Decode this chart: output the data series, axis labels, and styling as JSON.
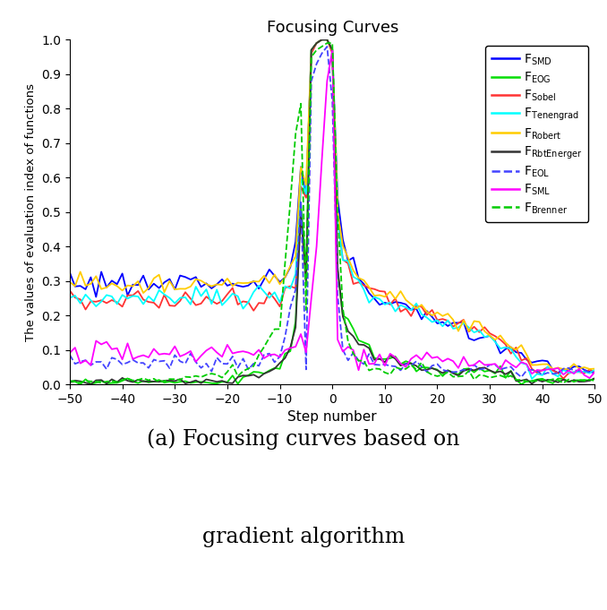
{
  "title": "Focusing Curves",
  "xlabel": "Step number",
  "ylabel": "The values of evaluation index of functions",
  "caption_line1": "(a) Focusing curves based on",
  "caption_line2": "gradient algorithm",
  "xlim": [
    -50,
    50
  ],
  "ylim": [
    0,
    1.0
  ],
  "xticks": [
    -50,
    -40,
    -30,
    -20,
    -10,
    0,
    10,
    20,
    30,
    40,
    50
  ],
  "yticks": [
    0,
    0.1,
    0.2,
    0.3,
    0.4,
    0.5,
    0.6,
    0.7,
    0.8,
    0.9,
    1
  ],
  "series": {
    "F_SMD": {
      "color": "#0000FF",
      "linestyle": "-",
      "linewidth": 1.3
    },
    "F_EOG": {
      "color": "#00DD00",
      "linestyle": "-",
      "linewidth": 1.3
    },
    "F_Sobel": {
      "color": "#FF3333",
      "linestyle": "-",
      "linewidth": 1.3
    },
    "F_Tenengrad": {
      "color": "#00FFFF",
      "linestyle": "-",
      "linewidth": 1.3
    },
    "F_Robert": {
      "color": "#FFCC00",
      "linestyle": "-",
      "linewidth": 1.3
    },
    "F_RbtEnerger": {
      "color": "#333333",
      "linestyle": "-",
      "linewidth": 1.3
    },
    "F_EOL": {
      "color": "#4444FF",
      "linestyle": "--",
      "linewidth": 1.3
    },
    "F_SML": {
      "color": "#FF00FF",
      "linestyle": "-",
      "linewidth": 1.3
    },
    "F_Brenner": {
      "color": "#00CC00",
      "linestyle": "--",
      "linewidth": 1.3
    }
  },
  "legend_main": [
    "SMD",
    "EOG",
    "Sobel",
    "Tenengrad",
    "Robert",
    "RbtEnerger",
    "EOL",
    "SML",
    "Brenner"
  ],
  "legend_styles": [
    "F_SMD",
    "F_EOG",
    "F_Sobel",
    "F_Tenengrad",
    "F_Robert",
    "F_RbtEnerger",
    "F_EOL",
    "F_SML",
    "F_Brenner"
  ]
}
